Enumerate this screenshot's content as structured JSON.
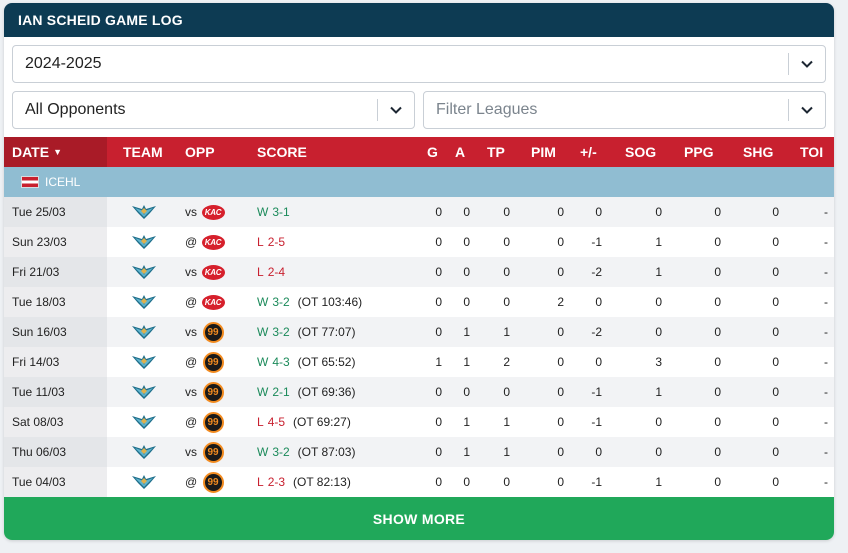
{
  "header": {
    "title": "IAN SCHEID GAME LOG"
  },
  "filters": {
    "season": "2024-2025",
    "opponents": "All Opponents",
    "leagues_placeholder": "Filter Leagues"
  },
  "table": {
    "headers": {
      "date": "DATE",
      "team": "TEAM",
      "opp": "OPP",
      "score": "SCORE",
      "g": "G",
      "a": "A",
      "tp": "TP",
      "pim": "PIM",
      "pm": "+/-",
      "sog": "SOG",
      "ppg": "PPG",
      "shg": "SHG",
      "toi": "TOI"
    },
    "league": "ICEHL",
    "rows": [
      {
        "date": "Tue 25/03",
        "venue": "vs",
        "opp_logo": "kac-logo",
        "opp_text": "KAC",
        "result": "W",
        "score": "3-1",
        "ot": "",
        "g": "0",
        "a": "0",
        "tp": "0",
        "pim": "0",
        "pm": "0",
        "sog": "0",
        "ppg": "0",
        "shg": "0",
        "toi": "-"
      },
      {
        "date": "Sun 23/03",
        "venue": "@",
        "opp_logo": "kac-logo",
        "opp_text": "KAC",
        "result": "L",
        "score": "2-5",
        "ot": "",
        "g": "0",
        "a": "0",
        "tp": "0",
        "pim": "0",
        "pm": "-1",
        "sog": "1",
        "ppg": "0",
        "shg": "0",
        "toi": "-"
      },
      {
        "date": "Fri 21/03",
        "venue": "vs",
        "opp_logo": "kac-logo",
        "opp_text": "KAC",
        "result": "L",
        "score": "2-4",
        "ot": "",
        "g": "0",
        "a": "0",
        "tp": "0",
        "pim": "0",
        "pm": "-2",
        "sog": "1",
        "ppg": "0",
        "shg": "0",
        "toi": "-"
      },
      {
        "date": "Tue 18/03",
        "venue": "@",
        "opp_logo": "kac-logo",
        "opp_text": "KAC",
        "result": "W",
        "score": "3-2",
        "ot": "(OT 103:46)",
        "g": "0",
        "a": "0",
        "tp": "0",
        "pim": "2",
        "pm": "0",
        "sog": "0",
        "ppg": "0",
        "shg": "0",
        "toi": "-"
      },
      {
        "date": "Sun 16/03",
        "venue": "vs",
        "opp_logo": "99ers-logo",
        "opp_text": "99",
        "result": "W",
        "score": "3-2",
        "ot": "(OT 77:07)",
        "g": "0",
        "a": "1",
        "tp": "1",
        "pim": "0",
        "pm": "-2",
        "sog": "0",
        "ppg": "0",
        "shg": "0",
        "toi": "-"
      },
      {
        "date": "Fri 14/03",
        "venue": "@",
        "opp_logo": "99ers-logo",
        "opp_text": "99",
        "result": "W",
        "score": "4-3",
        "ot": "(OT 65:52)",
        "g": "1",
        "a": "1",
        "tp": "2",
        "pim": "0",
        "pm": "0",
        "sog": "3",
        "ppg": "0",
        "shg": "0",
        "toi": "-"
      },
      {
        "date": "Tue 11/03",
        "venue": "vs",
        "opp_logo": "99ers-logo",
        "opp_text": "99",
        "result": "W",
        "score": "2-1",
        "ot": "(OT 69:36)",
        "g": "0",
        "a": "0",
        "tp": "0",
        "pim": "0",
        "pm": "-1",
        "sog": "1",
        "ppg": "0",
        "shg": "0",
        "toi": "-"
      },
      {
        "date": "Sat 08/03",
        "venue": "@",
        "opp_logo": "99ers-logo",
        "opp_text": "99",
        "result": "L",
        "score": "4-5",
        "ot": "(OT 69:27)",
        "g": "0",
        "a": "1",
        "tp": "1",
        "pim": "0",
        "pm": "-1",
        "sog": "0",
        "ppg": "0",
        "shg": "0",
        "toi": "-"
      },
      {
        "date": "Thu 06/03",
        "venue": "vs",
        "opp_logo": "99ers-logo",
        "opp_text": "99",
        "result": "W",
        "score": "3-2",
        "ot": "(OT 87:03)",
        "g": "0",
        "a": "1",
        "tp": "1",
        "pim": "0",
        "pm": "0",
        "sog": "0",
        "ppg": "0",
        "shg": "0",
        "toi": "-"
      },
      {
        "date": "Tue 04/03",
        "venue": "@",
        "opp_logo": "99ers-logo",
        "opp_text": "99",
        "result": "L",
        "score": "2-3",
        "ot": "(OT 82:13)",
        "g": "0",
        "a": "0",
        "tp": "0",
        "pim": "0",
        "pm": "-1",
        "sog": "1",
        "ppg": "0",
        "shg": "0",
        "toi": "-"
      }
    ]
  },
  "show_more_label": "SHOW MORE",
  "colors": {
    "header_bg": "#0d3b53",
    "table_header_bg": "#c8202f",
    "league_row_bg": "#90bdd2",
    "win": "#1b8a5a",
    "loss": "#c8202f",
    "show_more_bg": "#20a85a"
  }
}
